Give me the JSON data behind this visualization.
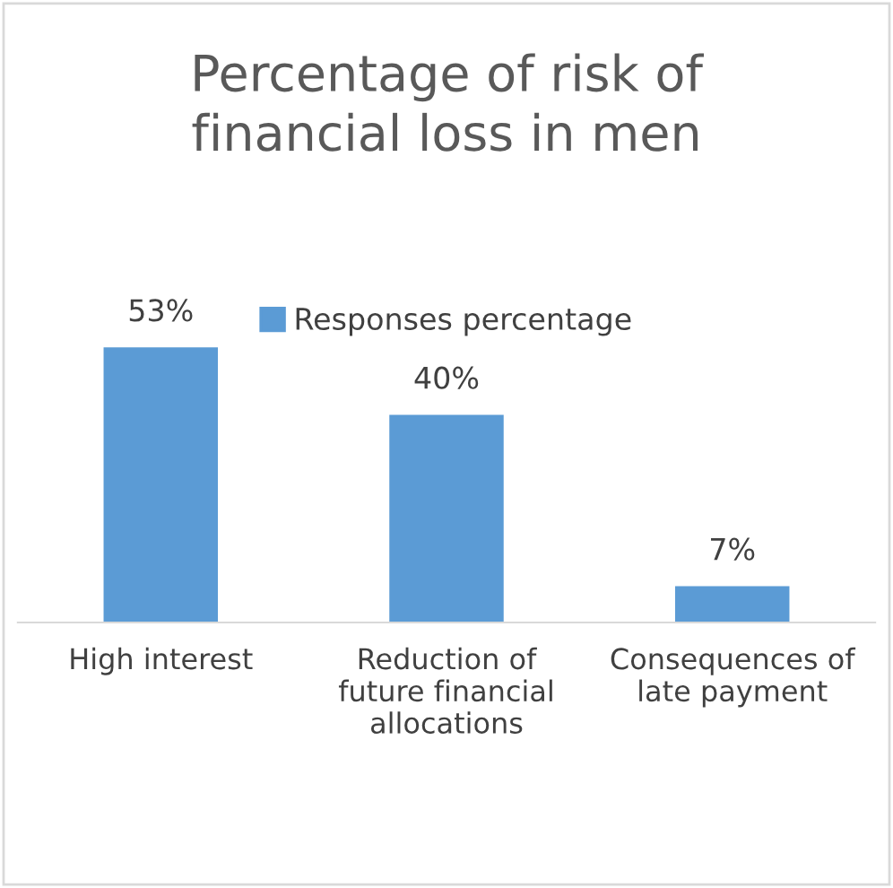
{
  "chart_data": {
    "type": "bar",
    "title": "Percentage of risk of\nfinancial loss in men",
    "categories": [
      "High interest",
      "Reduction of\nfuture financial\nallocations",
      "Consequences of\nlate payment"
    ],
    "series": [
      {
        "name": "Responses percentage",
        "color": "#5b9bd5",
        "values": [
          53,
          40,
          7
        ],
        "value_labels": [
          "53%",
          "40%",
          "7%"
        ]
      }
    ],
    "legend": "top"
  }
}
